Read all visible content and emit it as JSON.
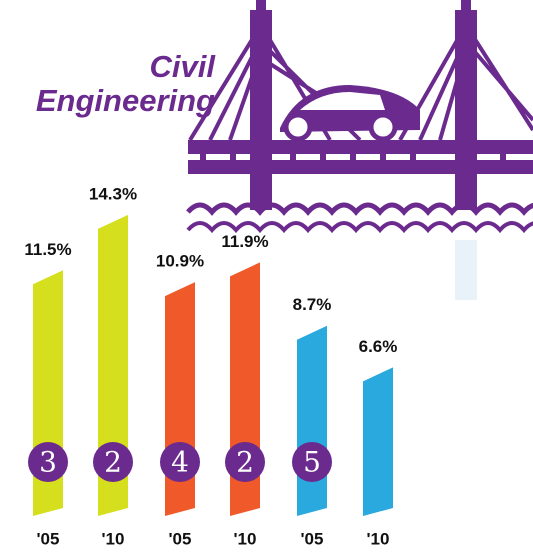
{
  "chart_data": {
    "type": "bar",
    "title": "Civil Engineering",
    "categories": [
      "'05",
      "'10",
      "'05",
      "'10",
      "'05",
      "'10"
    ],
    "values": [
      11.5,
      14.3,
      10.9,
      11.9,
      8.7,
      6.6
    ],
    "value_labels": [
      "11.5%",
      "14.3%",
      "10.9%",
      "11.9%",
      "8.7%",
      "6.6%"
    ],
    "colors": [
      "#d5df1e",
      "#d5df1e",
      "#f05a2a",
      "#f05a2a",
      "#2aa9df",
      "#2aa9df"
    ],
    "rank_labels": [
      "3",
      "2",
      "4",
      "2",
      "5",
      null
    ],
    "rank_color": "#6b2a8e"
  }
}
